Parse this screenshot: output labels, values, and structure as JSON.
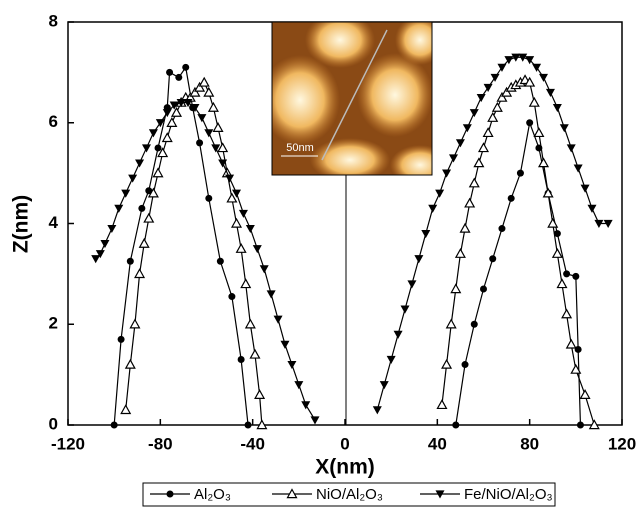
{
  "chart_data": {
    "type": "line",
    "xlabel": "X(nm)",
    "ylabel": "Z(nm)",
    "xlim": [
      -120,
      120
    ],
    "xticks": [
      -120,
      -80,
      -40,
      0,
      40,
      80,
      120
    ],
    "ylim": [
      0,
      8
    ],
    "yticks": [
      0,
      2,
      4,
      6,
      8
    ],
    "inset_scale_label": "50nm",
    "series": [
      {
        "name": "Al₂O₃",
        "color": "#000000",
        "marker": "circle",
        "x": [
          -100,
          -97,
          -93,
          -88,
          -85,
          -81,
          -77,
          -76,
          -72,
          -69,
          -66,
          -63,
          -59,
          -54,
          -49,
          -45,
          -42,
          null,
          48,
          52,
          56,
          60,
          64,
          68,
          72,
          76,
          80,
          84,
          88,
          92,
          96,
          100,
          101,
          102
        ],
        "values": [
          0,
          1.7,
          3.25,
          4.3,
          4.65,
          5.5,
          6.3,
          7.0,
          6.9,
          7.1,
          6.3,
          5.6,
          4.5,
          3.25,
          2.55,
          1.3,
          0,
          null,
          0,
          1.2,
          2.0,
          2.7,
          3.3,
          3.9,
          4.5,
          5.0,
          6.0,
          5.5,
          4.6,
          3.8,
          3.0,
          2.95,
          1.5,
          0
        ]
      },
      {
        "name": "NiO/Al₂O₃",
        "color": "#000000",
        "marker": "triangle-up-open",
        "x": [
          -95,
          -93,
          -91,
          -89,
          -87,
          -85,
          -83,
          -81,
          -79,
          -77,
          -75,
          -73,
          -71,
          -69,
          -67,
          -65,
          -63,
          -61,
          -59,
          -57,
          -55,
          -53,
          -51,
          -49,
          -47,
          -45,
          -43,
          -41,
          -39,
          -37,
          -36,
          null,
          42,
          44,
          46,
          48,
          50,
          52,
          54,
          56,
          58,
          60,
          62,
          64,
          66,
          68,
          70,
          72,
          74,
          76,
          78,
          80,
          82,
          84,
          86,
          88,
          90,
          92,
          94,
          96,
          98,
          100,
          104,
          108
        ],
        "values": [
          0.3,
          1.2,
          2.0,
          3.0,
          3.6,
          4.1,
          4.6,
          5.0,
          5.4,
          5.7,
          6.0,
          6.2,
          6.4,
          6.5,
          6.5,
          6.6,
          6.7,
          6.8,
          6.6,
          6.3,
          5.9,
          5.5,
          5.0,
          4.5,
          4.0,
          3.5,
          2.8,
          2.0,
          1.4,
          0.6,
          0,
          null,
          0.4,
          1.2,
          2.0,
          2.7,
          3.4,
          3.9,
          4.4,
          4.8,
          5.2,
          5.5,
          5.8,
          6.1,
          6.3,
          6.5,
          6.6,
          6.7,
          6.75,
          6.8,
          6.85,
          6.8,
          6.4,
          5.8,
          5.2,
          4.6,
          4.0,
          3.4,
          2.8,
          2.2,
          1.6,
          1.1,
          0.6,
          0
        ]
      },
      {
        "name": "Fe/NiO/Al₂O₃",
        "color": "#000000",
        "marker": "triangle-down",
        "x": [
          -108,
          -106,
          -104,
          -101,
          -98,
          -95,
          -92,
          -89,
          -86,
          -83,
          -80,
          -77,
          -74,
          -71,
          -68,
          -65,
          -62,
          -59,
          -56,
          -53,
          -50,
          -47,
          -44,
          -41,
          -38,
          -35,
          -32,
          -29,
          -26,
          -23,
          -20,
          -17,
          -13,
          null,
          14,
          17,
          20,
          23,
          26,
          29,
          32,
          35,
          38,
          41,
          44,
          47,
          50,
          53,
          56,
          59,
          62,
          65,
          68,
          71,
          74,
          77,
          80,
          83,
          86,
          89,
          92,
          95,
          98,
          101,
          104,
          107,
          110,
          114
        ],
        "values": [
          3.3,
          3.4,
          3.6,
          3.9,
          4.3,
          4.6,
          4.9,
          5.2,
          5.5,
          5.8,
          6.0,
          6.2,
          6.35,
          6.4,
          6.4,
          6.3,
          6.1,
          5.8,
          5.5,
          5.2,
          4.9,
          4.6,
          4.2,
          3.9,
          3.5,
          3.1,
          2.6,
          2.1,
          1.6,
          1.2,
          0.8,
          0.4,
          0.1,
          null,
          0.3,
          0.8,
          1.3,
          1.8,
          2.3,
          2.8,
          3.3,
          3.8,
          4.3,
          4.6,
          5.0,
          5.3,
          5.6,
          5.9,
          6.2,
          6.5,
          6.7,
          6.9,
          7.1,
          7.25,
          7.3,
          7.3,
          7.25,
          7.1,
          6.9,
          6.6,
          6.3,
          5.9,
          5.5,
          5.1,
          4.7,
          4.3,
          4.0,
          4.0
        ]
      }
    ]
  }
}
